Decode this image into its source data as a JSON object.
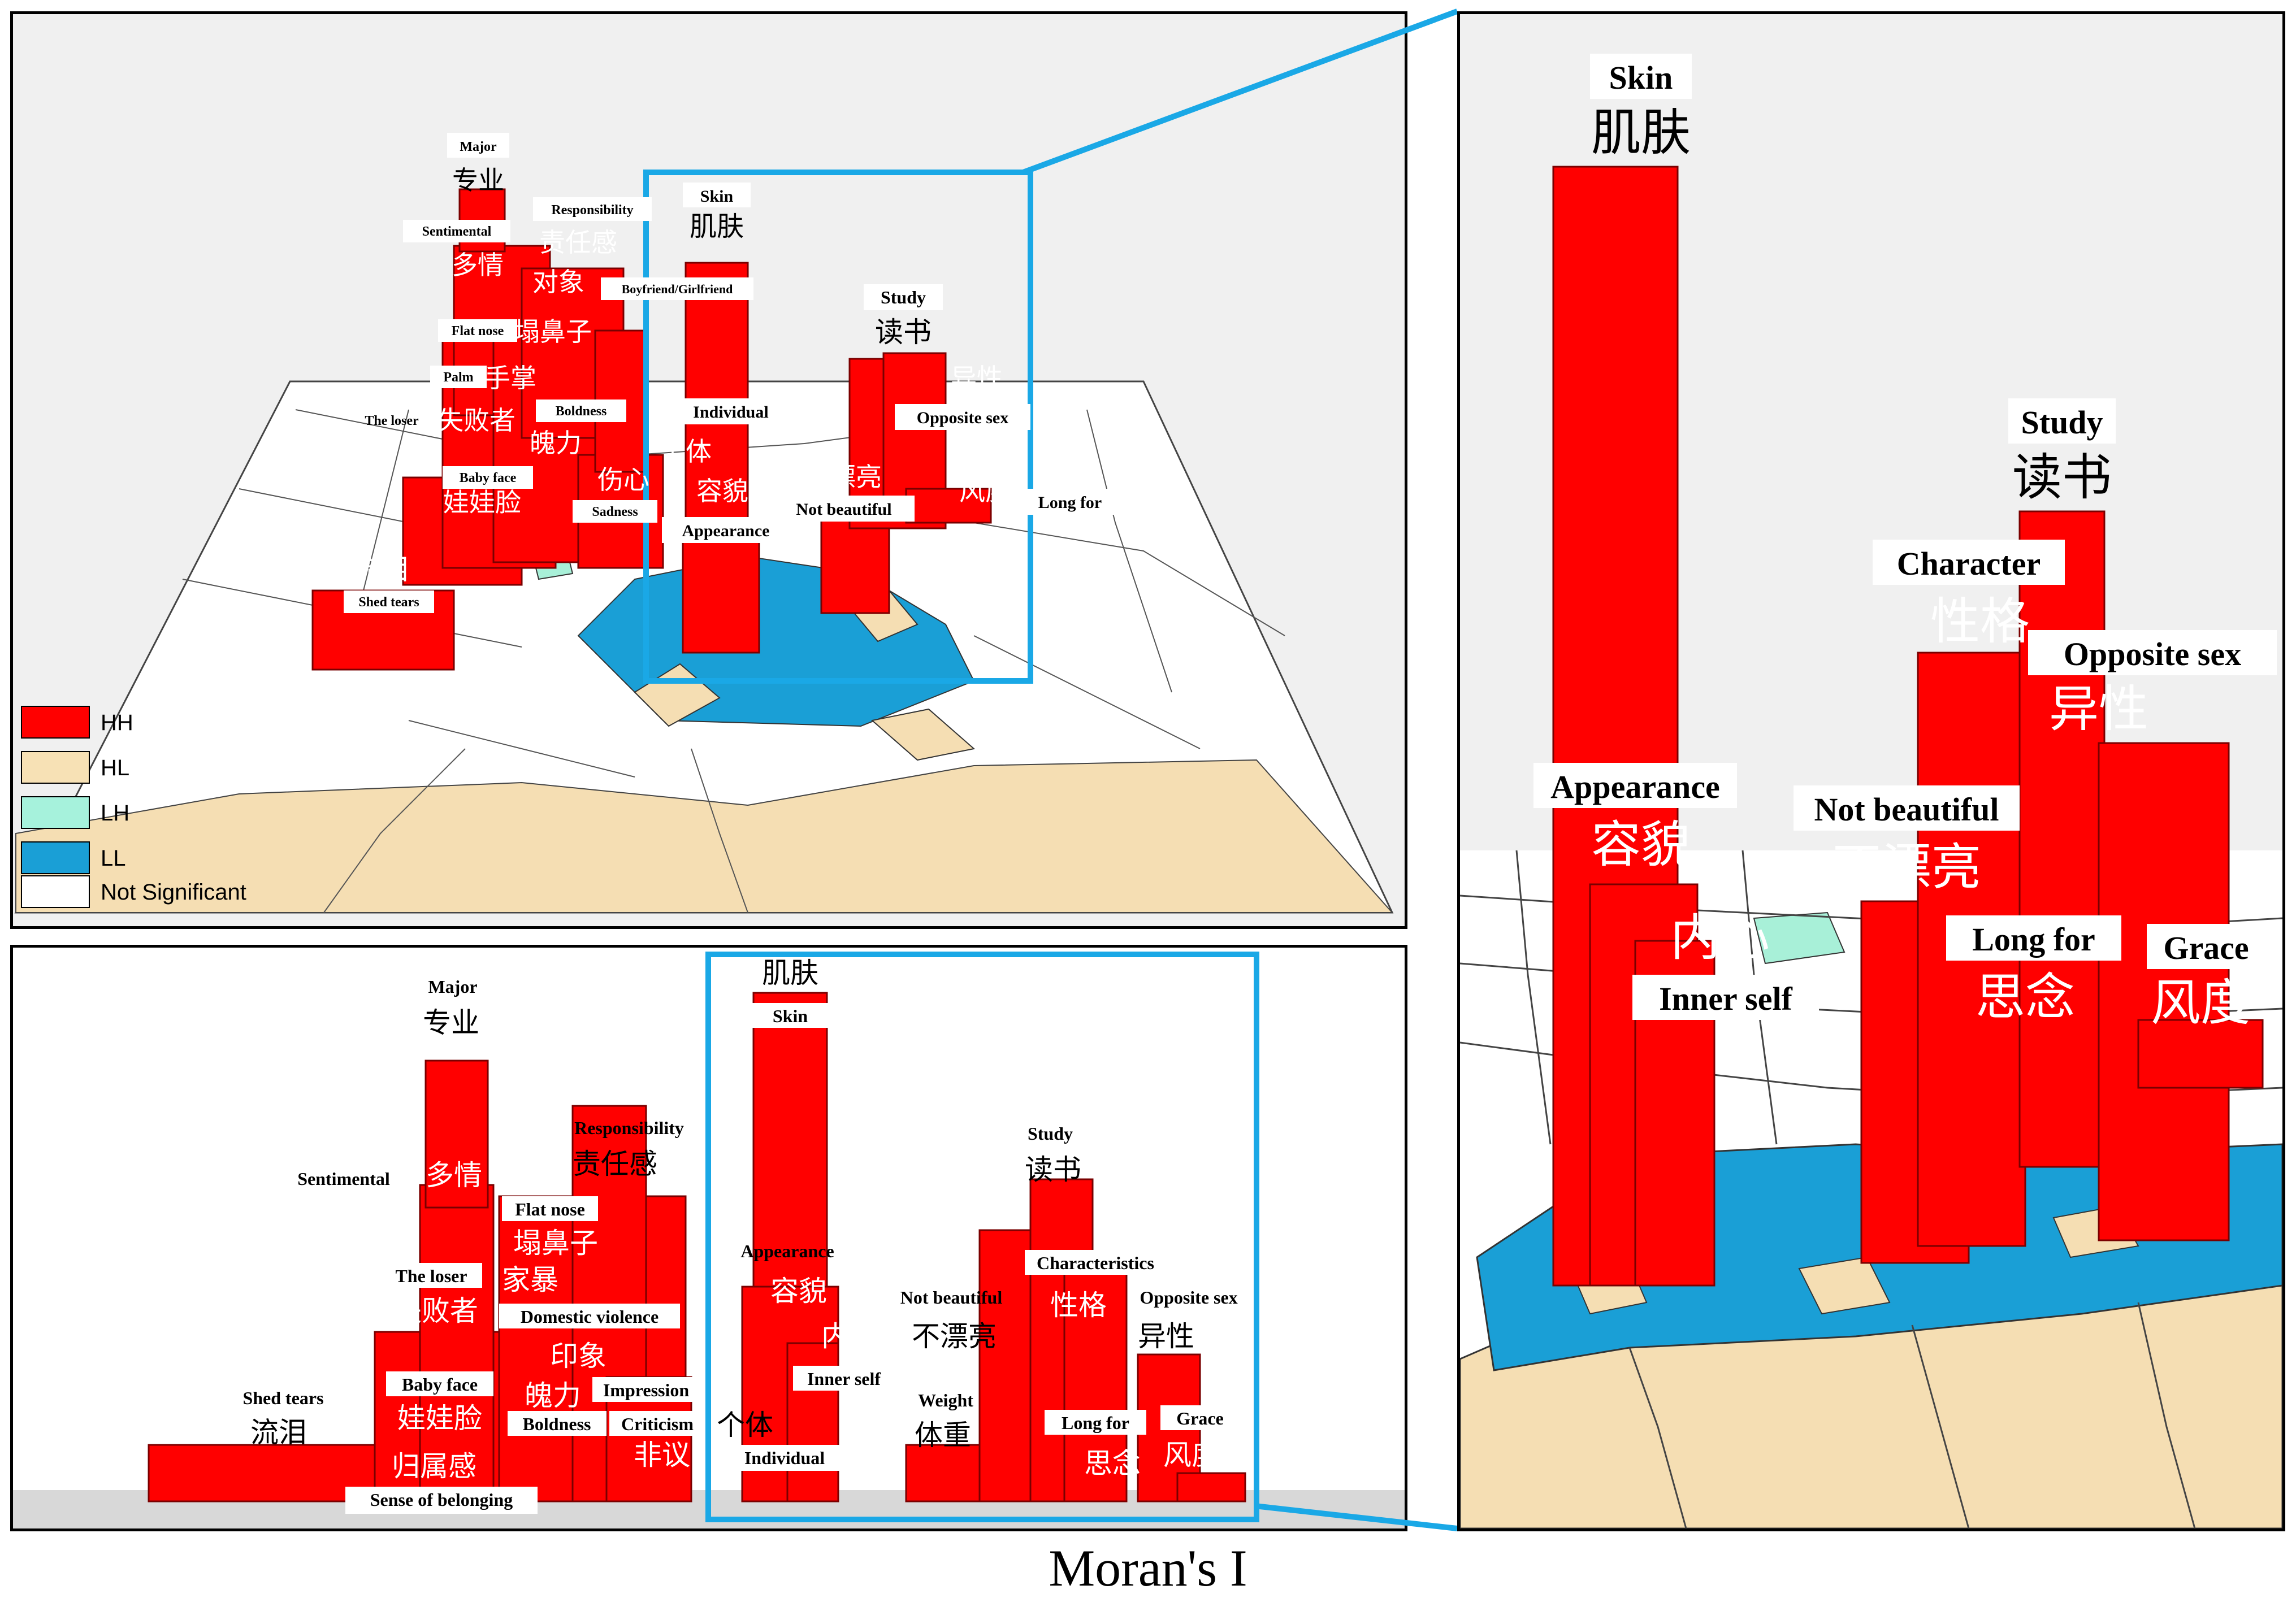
{
  "caption": "Moran's I",
  "colors": {
    "HH": "#ff0000",
    "HL": "#f5deb3",
    "LH": "#a8f0d8",
    "LL": "#1a9fd6",
    "NS": "#ffffff",
    "highlight": "#1aa8e6"
  },
  "legend": [
    {
      "key": "HH",
      "label": "HH",
      "color": "#ff0000"
    },
    {
      "key": "HL",
      "label": "HL",
      "color": "#f7e1b5"
    },
    {
      "key": "LH",
      "label": "LH",
      "color": "#a6f2dc"
    },
    {
      "key": "LL",
      "label": "LL",
      "color": "#1a9fd6"
    },
    {
      "key": "NS",
      "label": "Not Significant",
      "color": "#ffffff"
    }
  ],
  "top_panel": {
    "labels": {
      "major_en": "Major",
      "major_zh": "专业",
      "responsibility_en": "Responsibility",
      "responsibility_zh": "责任感",
      "sentimental_en": "Sentimental",
      "sentimental_zh": "多情",
      "object_zh": "对象",
      "boyfriend_en": "Boyfriend/Girlfriend",
      "flatnose_en": "Flat nose",
      "flatnose_zh": "塌鼻子",
      "palm_en": "Palm",
      "palm_zh": "手掌",
      "loser_en": "The loser",
      "loser_zh": "失败者",
      "boldness_en": "Boldness",
      "boldness_zh": "魄力",
      "babyface_en": "Baby face",
      "babyface_zh": "娃娃脸",
      "sadness_en": "Sadness",
      "sadness_zh": "伤心",
      "shedtears_en": "Shed tears",
      "shedtears_zh": "流泪",
      "skin_en": "Skin",
      "skin_zh": "肌肤",
      "individual_en": "Individual",
      "individual_zh": "个体",
      "appearance_en": "Appearance",
      "appearance_zh": "容貌",
      "notbeautiful_en": "Not beautiful",
      "notbeautiful_zh": "不漂亮",
      "study_en": "Study",
      "study_zh": "读书",
      "oppsex_en": "Opposite sex",
      "oppsex_zh": "异性",
      "grace_zh": "风度",
      "longfor_en": "Long for"
    }
  },
  "bottom_panel": {
    "labels": {
      "major_en": "Major",
      "major_zh": "专业",
      "sentimental_en": "Sentimental",
      "sentimental_zh": "多情",
      "responsibility_en": "Responsibility",
      "responsibility_zh": "责任感",
      "flatnose_en": "Flat nose",
      "flatnose_zh": "塌鼻子",
      "loser_en": "The loser",
      "loser_zh": "失败者",
      "domestic_zh": "家暴",
      "domestic_en": "Domestic violence",
      "impression_zh": "印象",
      "impression_en": "Impression",
      "boldness_zh": "魄力",
      "boldness_en": "Boldness",
      "babyface_en": "Baby face",
      "babyface_zh": "娃娃脸",
      "criticism_en": "Criticism",
      "criticism_zh": "非议",
      "shedtears_en": "Shed tears",
      "shedtears_zh": "流泪",
      "belonging_zh": "归属感",
      "belonging_en": "Sense of belonging",
      "skin_zh": "肌肤",
      "skin_en": "Skin",
      "appearance_en": "Appearance",
      "appearance_zh": "容貌",
      "innerself_zh": "内心",
      "innerself_en": "Inner self",
      "individual_zh": "个体",
      "individual_en": "Individual",
      "study_en": "Study",
      "study_zh": "读书",
      "characteristics_en": "Characteristics",
      "character_zh": "性格",
      "notbeautiful_en": "Not beautiful",
      "notbeautiful_zh": "不漂亮",
      "oppsex_en": "Opposite sex",
      "oppsex_zh": "异性",
      "weight_en": "Weight",
      "weight_zh": "体重",
      "longfor_en": "Long for",
      "longfor_zh": "思念",
      "grace_en": "Grace",
      "grace_zh": "风度"
    }
  },
  "right_panel": {
    "labels": {
      "skin_en": "Skin",
      "skin_zh": "肌肤",
      "study_en": "Study",
      "study_zh": "读书",
      "character_en": "Character",
      "character_zh": "性格",
      "oppsex_en": "Opposite sex",
      "oppsex_zh": "异性",
      "appearance_en": "Appearance",
      "appearance_zh": "容貌",
      "notbeautiful_en": "Not beautiful",
      "notbeautiful_zh": "不漂亮",
      "innerself_zh": "内心",
      "innerself_en": "Inner self",
      "longfor_en": "Long for",
      "longfor_zh": "思念",
      "grace_en": "Grace",
      "grace_zh": "风度"
    }
  }
}
